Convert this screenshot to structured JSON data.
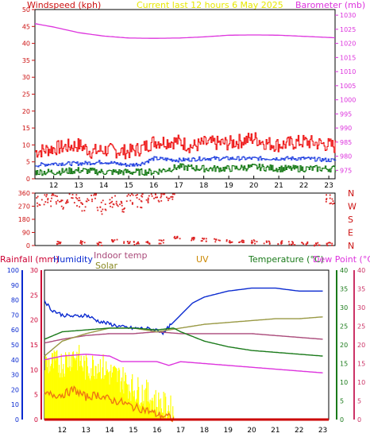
{
  "colors": {
    "background": "#ffffff",
    "wind_avg": "#1f3fe0",
    "wind_gust": "#ee1111",
    "wind_speed": "#117711",
    "barometer": "#dd33dd",
    "direction": "#dd2222",
    "rainfall": "#cc0033",
    "humidity": "#0a2ad0",
    "indoor_temp": "#aa4a7a",
    "solar": "#ffff00",
    "uv": "#ee7711",
    "temperature": "#1a7a1a",
    "dew_point": "#dd33dd"
  },
  "labels": {
    "windspeed": "Windspeed (kph)",
    "title": "Current last 12 hours 6 May 2025",
    "barometer": "Barometer (mb)",
    "rainfall": "Rainfall (mm)",
    "humidity": "Humidity",
    "indoor_temp": "Indoor temp",
    "solar": "Solar",
    "uv": "UV",
    "temperature": "Temperature (°C)",
    "dew_point": "Dew Point (°C)"
  },
  "chart_data": [
    {
      "type": "line",
      "title": "Current last 12 hours 6 May 2025",
      "xlabel": "",
      "x_ticks": [
        12,
        13,
        14,
        15,
        16,
        17,
        18,
        19,
        20,
        21,
        22,
        23
      ],
      "x_range": [
        11.25,
        23.25
      ],
      "y_left": {
        "label": "Windspeed (kph)",
        "range": [
          0,
          50
        ],
        "ticks": [
          0,
          5,
          10,
          15,
          20,
          25,
          30,
          35,
          40,
          45,
          50
        ]
      },
      "y_right": {
        "label": "Barometer (mb)",
        "range": [
          972,
          1032
        ],
        "ticks": [
          975,
          980,
          985,
          990,
          995,
          1000,
          1005,
          1010,
          1015,
          1020,
          1025,
          1030
        ]
      },
      "series": [
        {
          "name": "Barometer",
          "axis": "right",
          "x": [
            11.25,
            12,
            12.5,
            13,
            14,
            15,
            16,
            17,
            18,
            19,
            20,
            21,
            22,
            23,
            23.25
          ],
          "values": [
            1027,
            1025.8,
            1024.8,
            1023.8,
            1022.6,
            1021.9,
            1021.8,
            1021.9,
            1022.3,
            1022.9,
            1023.0,
            1022.9,
            1022.5,
            1022.1,
            1022.0
          ]
        },
        {
          "axis": "left",
          "x": [
            11.25,
            12,
            13,
            13.5,
            14,
            15,
            15.5,
            16,
            17,
            17.5,
            18,
            19,
            20,
            20.5,
            21,
            22,
            23,
            23.25
          ],
          "values": [
            8,
            9,
            10,
            8,
            8.5,
            8,
            9,
            11,
            11,
            9.5,
            10.5,
            10.5,
            12,
            10.5,
            10,
            11,
            10,
            9.5
          ]
        },
        {
          "axis": "left",
          "x": [
            11.25,
            12,
            13,
            14,
            15,
            15.5,
            16,
            17,
            18,
            19,
            20,
            21,
            22,
            23,
            23.25
          ],
          "values": [
            4,
            4.5,
            4.5,
            5,
            4,
            4.5,
            6,
            5.5,
            6,
            6,
            6,
            6,
            6,
            5.5,
            5.5
          ]
        },
        {
          "axis": "left",
          "x": [
            11.25,
            12,
            13,
            14,
            15,
            16,
            17,
            18,
            19,
            20,
            21,
            22,
            23,
            23.25
          ],
          "values": [
            2,
            2,
            2.5,
            2,
            2,
            2,
            3.5,
            3,
            3,
            3.5,
            3,
            3,
            3,
            3
          ]
        }
      ]
    },
    {
      "type": "scatter",
      "x_range": [
        11.25,
        23.25
      ],
      "y_left": {
        "range": [
          0,
          360
        ],
        "ticks": [
          0,
          90,
          180,
          270,
          360
        ]
      },
      "y_right_labels": [
        "N",
        "W",
        "S",
        "E",
        "N"
      ],
      "series": [
        {
          "x": [
            11.4,
            11.6,
            11.8,
            12.0,
            12.2,
            12.4,
            12.6,
            12.8,
            13.0,
            13.2,
            13.4,
            13.6,
            13.8,
            14.0,
            14.2,
            14.4,
            14.6,
            14.8,
            15.0,
            15.2,
            15.4,
            15.6,
            15.8,
            16.0,
            16.2,
            16.4,
            16.6,
            16.8,
            22.9,
            23.1
          ],
          "values": [
            310,
            320,
            300,
            330,
            315,
            290,
            330,
            320,
            300,
            270,
            310,
            330,
            250,
            280,
            290,
            320,
            300,
            270,
            340,
            320,
            300,
            340,
            330,
            345,
            340,
            350,
            345,
            350,
            330,
            320
          ]
        },
        {
          "x": [
            12.2,
            13.1,
            13.8,
            14.4,
            14.9,
            15.3,
            15.8,
            16.3,
            16.9,
            17.5,
            18.0,
            18.5,
            19.0,
            19.5,
            20.0,
            20.5,
            21.0,
            21.5,
            22.0,
            22.5,
            23.0
          ],
          "values": [
            20,
            25,
            15,
            40,
            30,
            20,
            25,
            30,
            55,
            50,
            45,
            40,
            35,
            30,
            30,
            25,
            25,
            20,
            20,
            15,
            15
          ]
        }
      ]
    },
    {
      "type": "line",
      "xlabel": "",
      "x_ticks": [
        12,
        13,
        14,
        15,
        16,
        17,
        18,
        19,
        20,
        21,
        22,
        23
      ],
      "x_range": [
        11.25,
        23.25
      ],
      "y_axes": {
        "humidity": {
          "label": "Humidity",
          "range": [
            0,
            100
          ],
          "ticks": [
            0,
            10,
            20,
            30,
            40,
            50,
            60,
            70,
            80,
            90,
            100
          ]
        },
        "rainfall": {
          "label": "Rainfall (mm)",
          "range": [
            0,
            30
          ],
          "ticks": [
            0,
            5,
            10,
            15,
            20,
            25,
            30
          ]
        },
        "temperature": {
          "label": "Temperature (°C)",
          "range": [
            0,
            40
          ],
          "ticks": [
            0,
            5,
            10,
            15,
            20,
            25,
            30,
            35,
            40
          ]
        },
        "dew_point": {
          "label": "Dew Point (°C)",
          "range": [
            0,
            40
          ],
          "ticks": [
            0,
            5,
            10,
            15,
            20,
            25,
            30,
            35,
            40
          ]
        }
      },
      "series": [
        {
          "name": "Humidity",
          "axis": "humidity",
          "x": [
            11.25,
            11.5,
            12,
            12.5,
            13,
            13.5,
            14,
            14.5,
            15,
            15.5,
            16,
            16.3,
            16.5,
            17,
            17.5,
            18,
            19,
            20,
            21,
            22,
            23
          ],
          "values": [
            80,
            74,
            70,
            69,
            70,
            66,
            64,
            62,
            61,
            61,
            60,
            58,
            62,
            70,
            78,
            82,
            86,
            88,
            88,
            86,
            86
          ]
        },
        {
          "name": "Indoor temp",
          "axis": "temperature",
          "x": [
            11.25,
            12,
            13,
            14,
            15,
            16,
            17,
            18,
            19,
            20,
            21,
            22,
            23
          ],
          "values": [
            20.5,
            21.5,
            22.5,
            23,
            23,
            23.5,
            23,
            23,
            23,
            23,
            22.5,
            22,
            21.5
          ]
        },
        {
          "name": "Solar",
          "axis": "temperature",
          "x": [
            11.25,
            12,
            13,
            14,
            15,
            16,
            17,
            18,
            19,
            20,
            21,
            22,
            23
          ],
          "values": [
            17,
            21,
            23,
            24.5,
            24.5,
            23.5,
            24.5,
            25.5,
            26,
            26.5,
            27,
            27,
            27.5
          ]
        },
        {
          "name": "Temperature (°C)",
          "axis": "temperature",
          "x": [
            11.25,
            12,
            13,
            14,
            15,
            16,
            16.7,
            17,
            18,
            19,
            20,
            21,
            22,
            23
          ],
          "values": [
            21.5,
            23.5,
            24,
            24.5,
            24.5,
            24,
            24.5,
            23.5,
            21,
            19.5,
            18.5,
            18,
            17.5,
            17
          ]
        },
        {
          "name": "Dew Point (°C)",
          "axis": "dew_point",
          "x": [
            11.25,
            12,
            13,
            14,
            14.5,
            15,
            16,
            16.5,
            17,
            18,
            19,
            20,
            21,
            22,
            23
          ],
          "values": [
            16,
            17,
            17.5,
            17,
            15.5,
            15.5,
            15.5,
            14.5,
            15.5,
            15,
            14.5,
            14,
            13.5,
            13,
            12.5
          ]
        },
        {
          "name": "UV",
          "axis": "rainfall",
          "x": [
            11.25,
            12,
            12.5,
            13,
            13.5,
            14,
            14.5,
            15,
            15.5,
            16,
            16.5,
            16.7
          ],
          "values": [
            5,
            5,
            6,
            4.5,
            5,
            4,
            3.5,
            2.5,
            2,
            1,
            0.5,
            0
          ]
        },
        {
          "name": "Rainfall (mm)",
          "axis": "rainfall",
          "x": [
            11.25,
            23.25
          ],
          "values": [
            0,
            0
          ]
        }
      ]
    }
  ]
}
